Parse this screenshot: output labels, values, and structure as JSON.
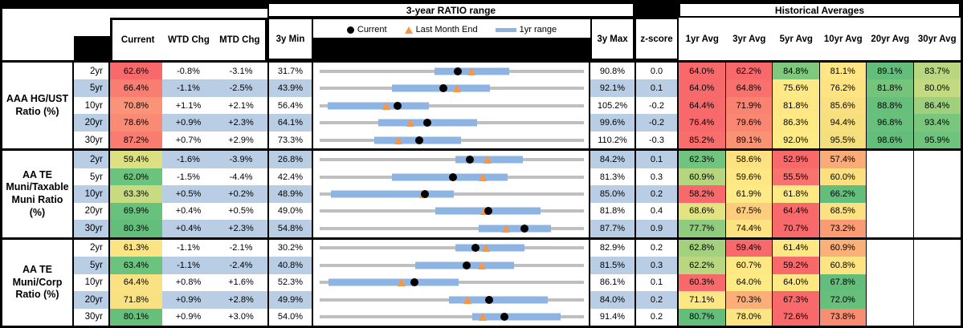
{
  "header": {
    "range_title": "3-year RATIO range",
    "hist_title": "Historical Averages",
    "col_current": "Current",
    "col_wtd": "WTD Chg",
    "col_mtd": "MTD Chg",
    "col_3ymin": "3y Min",
    "col_3ymax": "3y Max",
    "col_zscore": "z-score",
    "avg_cols": [
      "1yr Avg",
      "3yr Avg",
      "5yr Avg",
      "10yr Avg",
      "20yr Avg",
      "30yr Avg"
    ],
    "legend": {
      "current": "Current",
      "last_month": "Last Month End",
      "range": "1yr range"
    }
  },
  "colors": {
    "stripe_blue": "#B9CDE5",
    "track_gray": "#BFBFBF",
    "range_bar_blue": "#8DB4E2",
    "triangle_orange": "#F79646",
    "scale_red": "#F8696B",
    "scale_yellow": "#FFEB84",
    "scale_green": "#63BE7B"
  },
  "sections": [
    {
      "label_lines": [
        "AAA HG/UST",
        "Ratio (%)"
      ],
      "rows": [
        {
          "tenor": "2yr",
          "current": "62.6%",
          "current_bg": "#F8696B",
          "wtd": "-0.8%",
          "mtd": "-3.1%",
          "min": "31.7%",
          "max": "90.8%",
          "z": "0.0",
          "bar": [
            0.434,
            0.716
          ],
          "avgs": [
            {
              "v": "64.0%",
              "bg": "#F8696B"
            },
            {
              "v": "62.2%",
              "bg": "#F8696B"
            },
            {
              "v": "84.8%",
              "bg": "#7FC87D"
            },
            {
              "v": "81.1%",
              "bg": "#FFE584"
            },
            {
              "v": "89.1%",
              "bg": "#63BE7B"
            },
            {
              "v": "83.7%",
              "bg": "#B9D780"
            }
          ]
        },
        {
          "tenor": "5yr",
          "current": "66.4%",
          "current_bg": "#F87E72",
          "wtd": "-1.1%",
          "mtd": "-2.5%",
          "min": "43.9%",
          "max": "92.1%",
          "z": "0.1",
          "bar": [
            0.275,
            0.644
          ],
          "avgs": [
            {
              "v": "64.0%",
              "bg": "#F8696B"
            },
            {
              "v": "64.8%",
              "bg": "#F8716C"
            },
            {
              "v": "75.6%",
              "bg": "#FFE886"
            },
            {
              "v": "76.2%",
              "bg": "#FEE383"
            },
            {
              "v": "81.8%",
              "bg": "#74C47C"
            },
            {
              "v": "80.0%",
              "bg": "#C3DA81"
            }
          ]
        },
        {
          "tenor": "10yr",
          "current": "70.8%",
          "current_bg": "#FA9377",
          "wtd": "+1.1%",
          "mtd": "+2.1%",
          "min": "56.4%",
          "max": "105.2%",
          "z": "-0.2",
          "bar": [
            0.029,
            0.412
          ],
          "avgs": [
            {
              "v": "64.4%",
              "bg": "#F8696B"
            },
            {
              "v": "71.9%",
              "bg": "#F98270"
            },
            {
              "v": "81.8%",
              "bg": "#FFE785"
            },
            {
              "v": "85.6%",
              "bg": "#FAE081"
            },
            {
              "v": "88.8%",
              "bg": "#66BF7B"
            },
            {
              "v": "86.4%",
              "bg": "#9ED07E"
            }
          ]
        },
        {
          "tenor": "20yr",
          "current": "78.6%",
          "current_bg": "#F98A73",
          "wtd": "+0.9%",
          "mtd": "+2.3%",
          "min": "64.1%",
          "max": "99.6%",
          "z": "-0.2",
          "bar": [
            0.221,
            0.595
          ],
          "avgs": [
            {
              "v": "76.4%",
              "bg": "#F8696B"
            },
            {
              "v": "79.6%",
              "bg": "#F98772"
            },
            {
              "v": "86.3%",
              "bg": "#FEE985"
            },
            {
              "v": "94.4%",
              "bg": "#F7DF7E"
            },
            {
              "v": "96.8%",
              "bg": "#68C07C"
            },
            {
              "v": "93.4%",
              "bg": "#7BC67D"
            }
          ]
        },
        {
          "tenor": "30yr",
          "current": "87.2%",
          "current_bg": "#F87C70",
          "wtd": "+0.7%",
          "mtd": "+2.9%",
          "min": "73.3%",
          "max": "110.2%",
          "z": "-0.3",
          "bar": [
            0.206,
            0.534
          ],
          "avgs": [
            {
              "v": "85.2%",
              "bg": "#F86E6C"
            },
            {
              "v": "89.1%",
              "bg": "#FA9274"
            },
            {
              "v": "92.0%",
              "bg": "#FFEB84"
            },
            {
              "v": "95.5%",
              "bg": "#F5DE7D"
            },
            {
              "v": "98.6%",
              "bg": "#63BE7B"
            },
            {
              "v": "95.9%",
              "bg": "#70C37C"
            }
          ]
        }
      ]
    },
    {
      "label_lines": [
        "AA TE",
        "Muni/Taxable",
        "Muni Ratio",
        "(%)"
      ],
      "rows": [
        {
          "tenor": "2yr",
          "current": "59.4%",
          "current_bg": "#DCDF82",
          "wtd": "-1.6%",
          "mtd": "-3.9%",
          "min": "26.8%",
          "max": "84.2%",
          "z": "0.1",
          "bar": [
            0.515,
            0.77
          ],
          "avgs": [
            {
              "v": "62.3%",
              "bg": "#71C47D"
            },
            {
              "v": "58.6%",
              "bg": "#FEE282"
            },
            {
              "v": "52.9%",
              "bg": "#F8696B"
            },
            {
              "v": "57.4%",
              "bg": "#FBAB77"
            },
            {
              "v": "",
              "bg": "#FFFFFF"
            },
            {
              "v": "",
              "bg": "#FFFFFF"
            }
          ]
        },
        {
          "tenor": "5yr",
          "current": "62.0%",
          "current_bg": "#6CC37D",
          "wtd": "-1.5%",
          "mtd": "-4.4%",
          "min": "42.4%",
          "max": "81.3%",
          "z": "0.3",
          "bar": [
            0.275,
            0.711
          ],
          "avgs": [
            {
              "v": "60.9%",
              "bg": "#B5D67F"
            },
            {
              "v": "59.6%",
              "bg": "#FFE884"
            },
            {
              "v": "55.5%",
              "bg": "#F9736E"
            },
            {
              "v": "60.0%",
              "bg": "#FBE07F"
            },
            {
              "v": "",
              "bg": "#FFFFFF"
            },
            {
              "v": "",
              "bg": "#FFFFFF"
            }
          ]
        },
        {
          "tenor": "10yr",
          "current": "63.3%",
          "current_bg": "#C9DB81",
          "wtd": "+0.5%",
          "mtd": "+0.2%",
          "min": "48.9%",
          "max": "85.0%",
          "z": "0.2",
          "bar": [
            0.042,
            0.508
          ],
          "avgs": [
            {
              "v": "58.2%",
              "bg": "#F8696B"
            },
            {
              "v": "61.9%",
              "bg": "#FFEA85"
            },
            {
              "v": "61.8%",
              "bg": "#FEE984"
            },
            {
              "v": "66.2%",
              "bg": "#63BE7B"
            },
            {
              "v": "",
              "bg": "#FFFFFF"
            },
            {
              "v": "",
              "bg": "#FFFFFF"
            }
          ]
        },
        {
          "tenor": "20yr",
          "current": "69.9%",
          "current_bg": "#68C17C",
          "wtd": "+0.4%",
          "mtd": "+0.5%",
          "min": "49.0%",
          "max": "81.8%",
          "z": "0.4",
          "bar": [
            0.438,
            0.836
          ],
          "avgs": [
            {
              "v": "68.6%",
              "bg": "#E3E383"
            },
            {
              "v": "67.5%",
              "bg": "#FDCC7D"
            },
            {
              "v": "64.4%",
              "bg": "#F8696B"
            },
            {
              "v": "68.5%",
              "bg": "#FBE181"
            },
            {
              "v": "",
              "bg": "#FFFFFF"
            },
            {
              "v": "",
              "bg": "#FFFFFF"
            }
          ]
        },
        {
          "tenor": "30yr",
          "current": "80.3%",
          "current_bg": "#63BE7B",
          "wtd": "+0.4%",
          "mtd": "+2.3%",
          "min": "54.8%",
          "max": "87.7%",
          "z": "0.9",
          "bar": [
            0.601,
            0.875
          ],
          "avgs": [
            {
              "v": "77.7%",
              "bg": "#8FCC7E"
            },
            {
              "v": "74.4%",
              "bg": "#FDE381"
            },
            {
              "v": "70.7%",
              "bg": "#F8696B"
            },
            {
              "v": "73.2%",
              "bg": "#FA9B74"
            },
            {
              "v": "",
              "bg": "#FFFFFF"
            },
            {
              "v": "",
              "bg": "#FFFFFF"
            }
          ]
        }
      ]
    },
    {
      "label_lines": [
        "AA TE",
        "Muni/Corp",
        "Ratio (%)"
      ],
      "rows": [
        {
          "tenor": "2yr",
          "current": "61.3%",
          "current_bg": "#FBE483",
          "wtd": "-1.1%",
          "mtd": "-2.1%",
          "min": "30.2%",
          "max": "82.9%",
          "z": "0.2",
          "bar": [
            0.515,
            0.775
          ],
          "avgs": [
            {
              "v": "62.8%",
              "bg": "#A3D17E"
            },
            {
              "v": "59.4%",
              "bg": "#F8696B"
            },
            {
              "v": "61.4%",
              "bg": "#FCE985"
            },
            {
              "v": "60.9%",
              "bg": "#FBB078"
            },
            {
              "v": "",
              "bg": "#FFFFFF"
            },
            {
              "v": "",
              "bg": "#FFFFFF"
            }
          ]
        },
        {
          "tenor": "5yr",
          "current": "63.4%",
          "current_bg": "#6CC37D",
          "wtd": "-1.1%",
          "mtd": "-2.4%",
          "min": "40.8%",
          "max": "81.5%",
          "z": "0.3",
          "bar": [
            0.363,
            0.735
          ],
          "avgs": [
            {
              "v": "62.2%",
              "bg": "#B9D780"
            },
            {
              "v": "60.7%",
              "bg": "#FEE884"
            },
            {
              "v": "59.2%",
              "bg": "#F8696B"
            },
            {
              "v": "60.8%",
              "bg": "#FCE483"
            },
            {
              "v": "",
              "bg": "#FFFFFF"
            },
            {
              "v": "",
              "bg": "#FFFFFF"
            }
          ]
        },
        {
          "tenor": "10yr",
          "current": "64.4%",
          "current_bg": "#FAE282",
          "wtd": "+0.8%",
          "mtd": "+1.6%",
          "min": "52.3%",
          "max": "86.1%",
          "z": "0.1",
          "bar": [
            0.032,
            0.526
          ],
          "avgs": [
            {
              "v": "60.3%",
              "bg": "#F8696B"
            },
            {
              "v": "64.0%",
              "bg": "#FFEB84"
            },
            {
              "v": "64.0%",
              "bg": "#FEE884"
            },
            {
              "v": "67.8%",
              "bg": "#63BE7B"
            },
            {
              "v": "",
              "bg": "#FFFFFF"
            },
            {
              "v": "",
              "bg": "#FFFFFF"
            }
          ]
        },
        {
          "tenor": "20yr",
          "current": "71.8%",
          "current_bg": "#F7E183",
          "wtd": "+0.9%",
          "mtd": "+2.8%",
          "min": "49.9%",
          "max": "84.0%",
          "z": "0.2",
          "bar": [
            0.49,
            0.863
          ],
          "avgs": [
            {
              "v": "71.1%",
              "bg": "#FDE684"
            },
            {
              "v": "70.3%",
              "bg": "#FBAE77"
            },
            {
              "v": "67.3%",
              "bg": "#F8696B"
            },
            {
              "v": "72.0%",
              "bg": "#66C07C"
            },
            {
              "v": "",
              "bg": "#FFFFFF"
            },
            {
              "v": "",
              "bg": "#FFFFFF"
            }
          ]
        },
        {
          "tenor": "30yr",
          "current": "80.1%",
          "current_bg": "#66C07C",
          "wtd": "+0.9%",
          "mtd": "+3.0%",
          "min": "54.0%",
          "max": "91.4%",
          "z": "0.2",
          "bar": [
            0.576,
            0.912
          ],
          "avgs": [
            {
              "v": "80.7%",
              "bg": "#63BE7B"
            },
            {
              "v": "78.0%",
              "bg": "#FEE583"
            },
            {
              "v": "72.6%",
              "bg": "#F8696B"
            },
            {
              "v": "73.8%",
              "bg": "#F98D72"
            },
            {
              "v": "",
              "bg": "#FFFFFF"
            },
            {
              "v": "",
              "bg": "#FFFFFF"
            }
          ]
        }
      ]
    }
  ],
  "chart_data": {
    "type": "table",
    "title": "3-year RATIO range",
    "subtitle": "Historical Averages",
    "legend": [
      "Current",
      "Last Month End",
      "1yr range"
    ],
    "range_plot_note": "Per row: gray track spans 3y Min to 3y Max; blue bar = 1yr range; black dot = Current; orange triangle = Last Month End (Current minus MTD Chg)",
    "columns": [
      "tenor",
      "current_pct",
      "wtd_chg_pct",
      "mtd_chg_pct",
      "min_3y_pct",
      "max_3y_pct",
      "z_score",
      "avg_1yr",
      "avg_3yr",
      "avg_5yr",
      "avg_10yr",
      "avg_20yr",
      "avg_30yr"
    ],
    "groups": [
      {
        "name": "AAA HG/UST Ratio (%)",
        "rows": [
          [
            "2yr",
            62.6,
            -0.8,
            -3.1,
            31.7,
            90.8,
            0.0,
            64.0,
            62.2,
            84.8,
            81.1,
            89.1,
            83.7
          ],
          [
            "5yr",
            66.4,
            -1.1,
            -2.5,
            43.9,
            92.1,
            0.1,
            64.0,
            64.8,
            75.6,
            76.2,
            81.8,
            80.0
          ],
          [
            "10yr",
            70.8,
            1.1,
            2.1,
            56.4,
            105.2,
            -0.2,
            64.4,
            71.9,
            81.8,
            85.6,
            88.8,
            86.4
          ],
          [
            "20yr",
            78.6,
            0.9,
            2.3,
            64.1,
            99.6,
            -0.2,
            76.4,
            79.6,
            86.3,
            94.4,
            96.8,
            93.4
          ],
          [
            "30yr",
            87.2,
            0.7,
            2.9,
            73.3,
            110.2,
            -0.3,
            85.2,
            89.1,
            92.0,
            95.5,
            98.6,
            95.9
          ]
        ]
      },
      {
        "name": "AA TE Muni/Taxable Muni Ratio (%)",
        "rows": [
          [
            "2yr",
            59.4,
            -1.6,
            -3.9,
            26.8,
            84.2,
            0.1,
            62.3,
            58.6,
            52.9,
            57.4,
            null,
            null
          ],
          [
            "5yr",
            62.0,
            -1.5,
            -4.4,
            42.4,
            81.3,
            0.3,
            60.9,
            59.6,
            55.5,
            60.0,
            null,
            null
          ],
          [
            "10yr",
            63.3,
            0.5,
            0.2,
            48.9,
            85.0,
            0.2,
            58.2,
            61.9,
            61.8,
            66.2,
            null,
            null
          ],
          [
            "20yr",
            69.9,
            0.4,
            0.5,
            49.0,
            81.8,
            0.4,
            68.6,
            67.5,
            64.4,
            68.5,
            null,
            null
          ],
          [
            "30yr",
            80.3,
            0.4,
            2.3,
            54.8,
            87.7,
            0.9,
            77.7,
            74.4,
            70.7,
            73.2,
            null,
            null
          ]
        ]
      },
      {
        "name": "AA TE Muni/Corp Ratio (%)",
        "rows": [
          [
            "2yr",
            61.3,
            -1.1,
            -2.1,
            30.2,
            82.9,
            0.2,
            62.8,
            59.4,
            61.4,
            60.9,
            null,
            null
          ],
          [
            "5yr",
            63.4,
            -1.1,
            -2.4,
            40.8,
            81.5,
            0.3,
            62.2,
            60.7,
            59.2,
            60.8,
            null,
            null
          ],
          [
            "10yr",
            64.4,
            0.8,
            1.6,
            52.3,
            86.1,
            0.1,
            60.3,
            64.0,
            64.0,
            67.8,
            null,
            null
          ],
          [
            "20yr",
            71.8,
            0.9,
            2.8,
            49.9,
            84.0,
            0.2,
            71.1,
            70.3,
            67.3,
            72.0,
            null,
            null
          ],
          [
            "30yr",
            80.1,
            0.9,
            3.0,
            54.0,
            91.4,
            0.2,
            80.7,
            78.0,
            72.6,
            73.8,
            null,
            null
          ]
        ]
      }
    ]
  }
}
